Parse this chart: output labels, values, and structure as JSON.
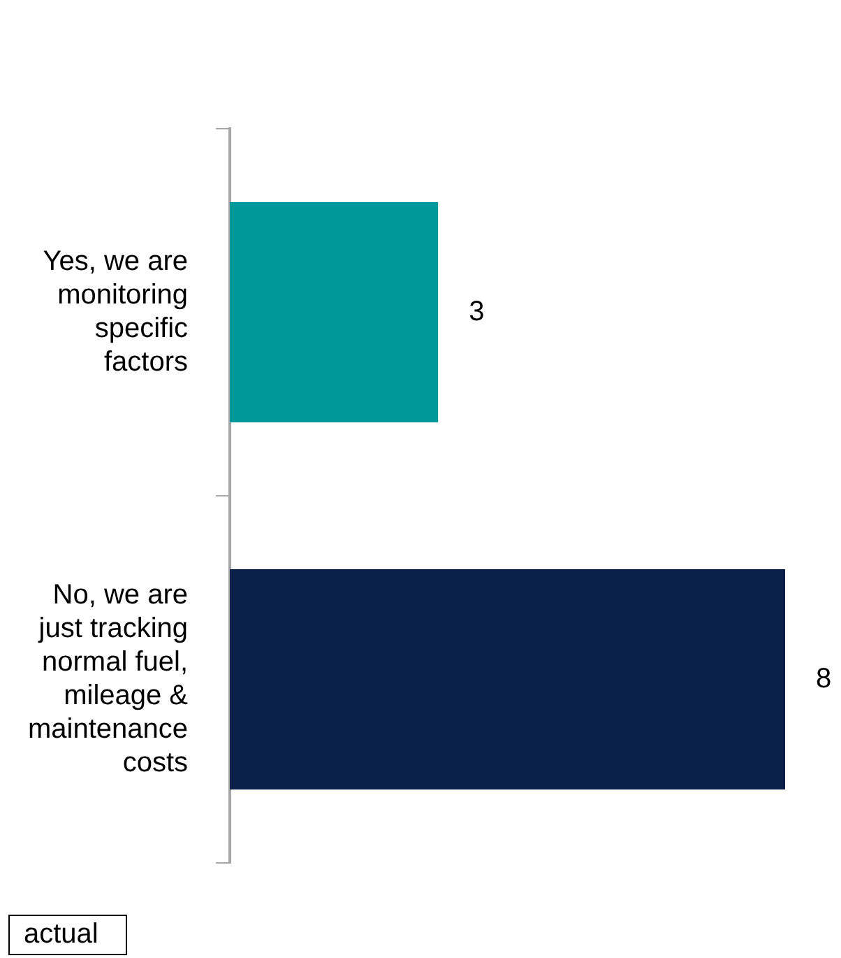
{
  "chart_data": {
    "type": "bar",
    "orientation": "horizontal",
    "categories": [
      "Yes, we are monitoring specific factors",
      "No, we are just tracking normal fuel, mileage & maintenance costs"
    ],
    "values": [
      3,
      8
    ],
    "colors": [
      "#009999",
      "#0a1f4a"
    ],
    "xlim": [
      0,
      8
    ],
    "data_labels": true,
    "tick_labels": "y",
    "grid": false,
    "legend": false,
    "annotations": [
      "actual"
    ]
  }
}
